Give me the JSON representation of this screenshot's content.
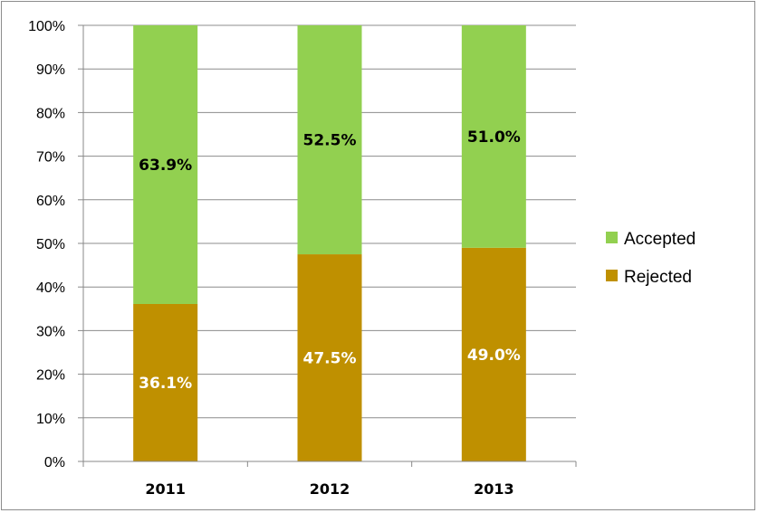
{
  "chart_data": {
    "type": "bar",
    "stacked": true,
    "categories": [
      "2011",
      "2012",
      "2013"
    ],
    "series": [
      {
        "name": "Rejected",
        "values": [
          36.1,
          47.5,
          49.0
        ],
        "labels": [
          "36.1%",
          "47.5%",
          "49.0%"
        ],
        "color": "#bf9000",
        "label_color": "#ffffff"
      },
      {
        "name": "Accepted",
        "values": [
          63.9,
          52.5,
          51.0
        ],
        "labels": [
          "63.9%",
          "52.5%",
          "51.0%"
        ],
        "color": "#92d050",
        "label_color": "#000000"
      }
    ],
    "y_ticks": [
      "0%",
      "10%",
      "20%",
      "30%",
      "40%",
      "50%",
      "60%",
      "70%",
      "80%",
      "90%",
      "100%"
    ],
    "ylim": [
      0,
      100
    ],
    "grid": true,
    "legend": {
      "position": "right",
      "order": [
        "Accepted",
        "Rejected"
      ]
    }
  }
}
